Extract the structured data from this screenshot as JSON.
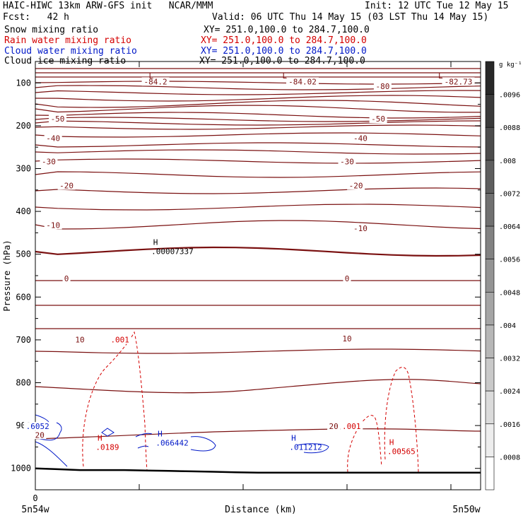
{
  "header": {
    "model_line": "HAIC-HIWC 13km ARW-GFS init   NCAR/MMM",
    "init_line": "Init: 12 UTC Tue 12 May 15",
    "fcst_line": "Fcst:   42 h",
    "valid_line": "Valid: 06 UTC Thu 14 May 15 (03 LST Thu 14 May 15)",
    "fields": [
      {
        "name": "Snow mixing ratio",
        "xy": "XY= 251.0,100.0 to 284.7,100.0",
        "color": "#000000"
      },
      {
        "name": "Rain water mixing ratio",
        "xy": "XY= 251.0,100.0 to 284.7,100.0",
        "color": "#d40000"
      },
      {
        "name": "Cloud water mixing ratio",
        "xy": "XY= 251.0,100.0 to 284.7,100.0",
        "color": "#0018c8"
      },
      {
        "name": "Cloud ice mixing ratio",
        "xy": "XY= 251.0,100.0 to 284.7,100.0",
        "color": "#000000"
      }
    ]
  },
  "chart_data": {
    "type": "line",
    "xlabel": "Distance (km)",
    "ylabel": "Pressure (hPa)",
    "x_tick_labels": [
      "0"
    ],
    "x_end_labels": {
      "left": "5n54w",
      "right": "5n50w"
    },
    "y_ticks": [
      100,
      200,
      300,
      400,
      500,
      600,
      700,
      800,
      900,
      1000
    ],
    "ylim": [
      1050,
      50
    ],
    "temperature_contours": {
      "color": "#7a1010",
      "labels": [
        {
          "text": "-84.2",
          "x": 0.27,
          "p": 100
        },
        {
          "text": "-84.02",
          "x": 0.6,
          "p": 100
        },
        {
          "text": "-82.73",
          "x": 0.95,
          "p": 100
        },
        {
          "text": "-80",
          "x": 0.78,
          "p": 111
        },
        {
          "text": "-50",
          "x": 0.05,
          "p": 187
        },
        {
          "text": "-50",
          "x": 0.77,
          "p": 187
        },
        {
          "text": "-40",
          "x": 0.04,
          "p": 232
        },
        {
          "text": "-40",
          "x": 0.73,
          "p": 232
        },
        {
          "text": "-30",
          "x": 0.03,
          "p": 287
        },
        {
          "text": "-30",
          "x": 0.7,
          "p": 287
        },
        {
          "text": "-20",
          "x": 0.07,
          "p": 343
        },
        {
          "text": "-20",
          "x": 0.72,
          "p": 343
        },
        {
          "text": "-10",
          "x": 0.04,
          "p": 435
        },
        {
          "text": "-10",
          "x": 0.73,
          "p": 443
        },
        {
          "text": "0",
          "x": 0.07,
          "p": 560
        },
        {
          "text": "0",
          "x": 0.7,
          "p": 560
        },
        {
          "text": "10",
          "x": 0.1,
          "p": 703
        },
        {
          "text": "10",
          "x": 0.7,
          "p": 700
        },
        {
          "text": "20",
          "x": 0.01,
          "p": 925
        },
        {
          "text": "20",
          "x": 0.67,
          "p": 905
        }
      ],
      "extrema": [
        {
          "text": "L",
          "x": 0.26,
          "p": 90
        },
        {
          "text": "L",
          "x": 0.56,
          "p": 90
        },
        {
          "text": "L",
          "x": 0.91,
          "p": 90
        }
      ]
    },
    "rain_water": {
      "color": "#d40000",
      "labels": [
        {
          "text": ".001",
          "x": 0.19,
          "p": 703
        },
        {
          "text": ".001",
          "x": 0.71,
          "p": 905
        }
      ],
      "maxima": [
        {
          "text": "H",
          "value": ".0189",
          "x": 0.145,
          "p": 935
        },
        {
          "text": "H",
          "value": ".00565",
          "x": 0.8,
          "p": 945
        }
      ]
    },
    "cloud_water": {
      "color": "#0018c8",
      "labels": [
        {
          "text": ".6052",
          "x": 0.005,
          "p": 905
        }
      ],
      "maxima": [
        {
          "text": "H",
          "value": ".066442",
          "x": 0.28,
          "p": 925
        },
        {
          "text": "H",
          "value": ".011212",
          "x": 0.58,
          "p": 935
        }
      ]
    },
    "cloud_ice": {
      "color": "#000000",
      "maxima": [
        {
          "text": "H",
          "value": ".00007337",
          "x": 0.27,
          "p": 478
        }
      ]
    },
    "terrain_p": [
      1000,
      1002,
      1004,
      1004,
      1004,
      1005,
      1006,
      1007,
      1008,
      1009,
      1010,
      1010,
      1010,
      1010,
      1010,
      1010,
      1010,
      1010,
      1010,
      1010,
      1010
    ],
    "colorbar": {
      "unit": "g kg⁻¹",
      "tick_labels": [
        ".0096",
        ".0088",
        ".008",
        ".0072",
        ".0064",
        ".0056",
        ".0048",
        ".004",
        ".0032",
        ".0024",
        ".0016",
        ".0008"
      ]
    }
  }
}
